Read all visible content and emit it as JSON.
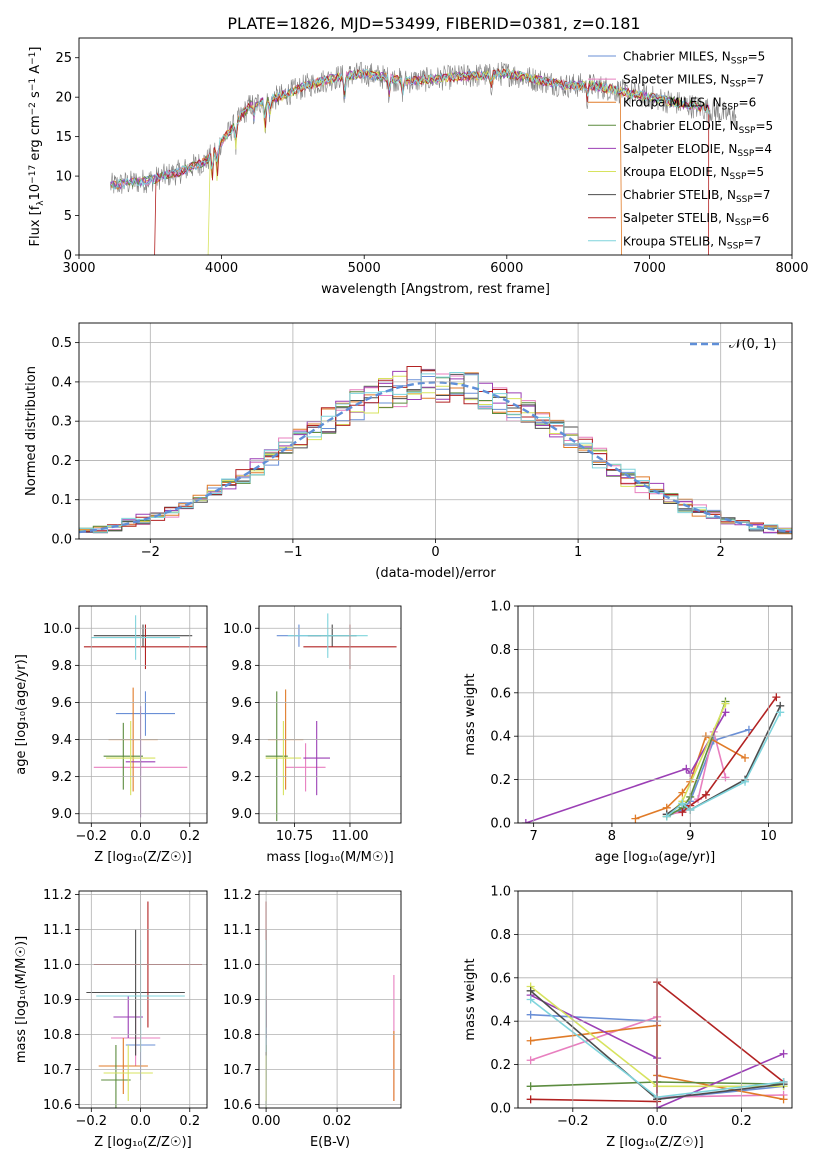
{
  "figure_title": "PLATE=1826, MJD=53499, FIBERID=0381, z=0.181",
  "colors": {
    "c0": "#6a8fd6",
    "c1": "#e87fbf",
    "c2": "#e07b28",
    "c3": "#5c8c3f",
    "c4": "#9b3fb5",
    "c5": "#d7e35f",
    "c6": "#4d4d4d",
    "c7": "#b22222",
    "c8": "#7fd4dc",
    "data": "#808080",
    "normal": "#5f8fd8"
  },
  "chart_data": [
    {
      "id": "spectrum",
      "type": "line",
      "xlabel": "wavelength [Angstrom, rest frame]",
      "ylabel_main": "Flux [f",
      "ylabel_sub": "λ",
      "ylabel_after": "10",
      "ylabel_exp": "−17",
      "ylabel_units": " erg cm",
      "ylabel_units_exp": "−2",
      "ylabel_s": " s",
      "ylabel_s_exp": "−1",
      "ylabel_A": " A",
      "ylabel_A_exp": "−1",
      "ylabel_close": "]",
      "xlim": [
        3000,
        8000
      ],
      "ylim": [
        0,
        27.5
      ],
      "xticks": [
        3000,
        4000,
        5000,
        6000,
        7000,
        8000
      ],
      "yticks": [
        0,
        5,
        10,
        15,
        20,
        25
      ],
      "grid": false,
      "legend_position": "upper right",
      "legend": [
        {
          "name": "Chabrier MILES",
          "nssp": "5"
        },
        {
          "name": "Salpeter MILES",
          "nssp": "7"
        },
        {
          "name": "Kroupa MILES",
          "nssp": "6"
        },
        {
          "name": "Chabrier ELODIE",
          "nssp": "5"
        },
        {
          "name": "Salpeter ELODIE",
          "nssp": "4"
        },
        {
          "name": "Kroupa ELODIE",
          "nssp": "5"
        },
        {
          "name": "Chabrier STELIB",
          "nssp": "7"
        },
        {
          "name": "Salpeter STELIB",
          "nssp": "6"
        },
        {
          "name": "Kroupa STELIB",
          "nssp": "7"
        }
      ],
      "legend_prefix": "N",
      "legend_sub": "SSP",
      "continuum": [
        [
          3220,
          8.8
        ],
        [
          3500,
          9.5
        ],
        [
          3700,
          10.5
        ],
        [
          3900,
          12
        ],
        [
          4050,
          15.5
        ],
        [
          4200,
          19
        ],
        [
          4400,
          20
        ],
        [
          4600,
          21.5
        ],
        [
          4800,
          22.5
        ],
        [
          5000,
          23
        ],
        [
          5300,
          22
        ],
        [
          5600,
          22.5
        ],
        [
          6000,
          23
        ],
        [
          6400,
          21.5
        ],
        [
          6600,
          21.5
        ],
        [
          7000,
          20
        ],
        [
          7400,
          18.5
        ],
        [
          7600,
          17.5
        ]
      ],
      "absorption": [
        [
          3934,
          3.5
        ],
        [
          3969,
          4
        ],
        [
          4101,
          3
        ],
        [
          4226,
          2
        ],
        [
          4305,
          4
        ],
        [
          4340,
          2.5
        ],
        [
          4861,
          3
        ],
        [
          5175,
          2
        ],
        [
          5270,
          1.5
        ],
        [
          5890,
          2
        ],
        [
          6563,
          2
        ]
      ],
      "drops": [
        [
          3530,
          0
        ],
        [
          3905,
          0
        ],
        [
          6790,
          0
        ],
        [
          7410,
          0
        ]
      ]
    },
    {
      "id": "residuals",
      "type": "line",
      "xlabel": "(data-model)/error",
      "ylabel": "Normed distribution",
      "xlim": [
        -2.5,
        2.5
      ],
      "ylim": [
        0,
        0.55
      ],
      "xticks": [
        -2,
        -1,
        0,
        1,
        2
      ],
      "yticks": [
        0.0,
        0.1,
        0.2,
        0.3,
        0.4,
        0.5
      ],
      "grid": true,
      "legend_position": "upper right",
      "normal_label": "𝒩(0, 1)",
      "bins": 50
    },
    {
      "id": "age-vs-Z",
      "type": "scatter",
      "xlabel": "Z [log₁₀(Z/Z☉)]",
      "ylabel": "age  [log₁₀(age/yr)]",
      "xlim": [
        -0.25,
        0.27
      ],
      "ylim": [
        8.95,
        10.12
      ],
      "xticks": [
        -0.2,
        0.0,
        0.2
      ],
      "yticks": [
        9.0,
        9.2,
        9.4,
        9.6,
        9.8,
        10.0
      ],
      "grid": true,
      "points": [
        {
          "x": 0.02,
          "xerr": 0.12,
          "y": 9.54,
          "yerr": 0.12
        },
        {
          "x": 0.0,
          "xerr": 0.19,
          "y": 9.25,
          "yerr": 0.04
        },
        {
          "x": -0.03,
          "xerr": 0.1,
          "y": 9.4,
          "yerr": 0.28
        },
        {
          "x": -0.07,
          "xerr": 0.08,
          "y": 9.31,
          "yerr": 0.18
        },
        {
          "x": 0.0,
          "xerr": 0.06,
          "y": 9.28,
          "yerr": 0.3
        },
        {
          "x": -0.04,
          "xerr": 0.1,
          "y": 9.3,
          "yerr": 0.2
        },
        {
          "x": 0.01,
          "xerr": 0.2,
          "y": 9.96,
          "yerr": 0.06
        },
        {
          "x": 0.02,
          "xerr": 0.25,
          "y": 9.9,
          "yerr": 0.12
        },
        {
          "x": -0.02,
          "xerr": 0.18,
          "y": 9.95,
          "yerr": 0.12
        }
      ]
    },
    {
      "id": "age-vs-mass",
      "type": "scatter",
      "xlabel": "mass [log₁₀(M/M☉)]",
      "ylabel": "",
      "xlim": [
        10.59,
        11.23
      ],
      "ylim": [
        8.95,
        10.12
      ],
      "xticks": [
        10.75,
        11.0
      ],
      "xticklabels": [
        "10.75",
        "11.00"
      ],
      "yticks": [
        9.0,
        9.2,
        9.4,
        9.6,
        9.8,
        10.0
      ],
      "grid": true,
      "points": [
        {
          "x": 10.77,
          "xerr": 0.1,
          "y": 9.96,
          "yerr": 0.06
        },
        {
          "x": 10.8,
          "xerr": 0.09,
          "y": 9.25,
          "yerr": 0.13
        },
        {
          "x": 10.71,
          "xerr": 0.08,
          "y": 9.4,
          "yerr": 0.27
        },
        {
          "x": 10.67,
          "xerr": 0.05,
          "y": 9.31,
          "yerr": 0.35
        },
        {
          "x": 10.85,
          "xerr": 0.06,
          "y": 9.3,
          "yerr": 0.2
        },
        {
          "x": 10.7,
          "xerr": 0.08,
          "y": 9.3,
          "yerr": 0.2
        },
        {
          "x": 10.92,
          "xerr": 0.11,
          "y": 9.96,
          "yerr": 0.06
        },
        {
          "x": 11.0,
          "xerr": 0.21,
          "y": 9.9,
          "yerr": 0.12
        },
        {
          "x": 10.9,
          "xerr": 0.18,
          "y": 9.96,
          "yerr": 0.12
        }
      ]
    },
    {
      "id": "weight-vs-age",
      "type": "line",
      "xlabel": "age  [log₁₀(age/yr)]",
      "ylabel": "mass weight",
      "xlim": [
        6.8,
        10.3
      ],
      "ylim": [
        0,
        1.0
      ],
      "xticks": [
        7,
        8,
        9,
        10
      ],
      "yticks": [
        0.0,
        0.2,
        0.4,
        0.6,
        0.8,
        1.0
      ],
      "grid": true,
      "series": [
        {
          "points": [
            [
              8.7,
              0.03
            ],
            [
              8.9,
              0.06
            ],
            [
              9.0,
              0.1
            ],
            [
              9.3,
              0.38
            ],
            [
              9.75,
              0.43
            ]
          ]
        },
        {
          "points": [
            [
              8.7,
              0.04
            ],
            [
              8.9,
              0.05
            ],
            [
              9.1,
              0.11
            ],
            [
              9.3,
              0.42
            ],
            [
              9.45,
              0.21
            ]
          ]
        },
        {
          "points": [
            [
              8.3,
              0.02
            ],
            [
              8.7,
              0.07
            ],
            [
              8.9,
              0.14
            ],
            [
              9.0,
              0.19
            ],
            [
              9.2,
              0.4
            ],
            [
              9.7,
              0.3
            ]
          ]
        },
        {
          "points": [
            [
              8.7,
              0.03
            ],
            [
              8.9,
              0.07
            ],
            [
              9.0,
              0.12
            ],
            [
              9.45,
              0.56
            ]
          ]
        },
        {
          "points": [
            [
              6.9,
              0.0
            ],
            [
              8.95,
              0.25
            ],
            [
              9.0,
              0.23
            ],
            [
              9.45,
              0.51
            ]
          ]
        },
        {
          "points": [
            [
              8.7,
              0.03
            ],
            [
              8.9,
              0.1
            ],
            [
              9.45,
              0.55
            ]
          ]
        },
        {
          "points": [
            [
              8.7,
              0.04
            ],
            [
              8.9,
              0.09
            ],
            [
              9.0,
              0.06
            ],
            [
              9.7,
              0.2
            ],
            [
              10.15,
              0.54
            ]
          ]
        },
        {
          "points": [
            [
              8.9,
              0.05
            ],
            [
              9.0,
              0.08
            ],
            [
              9.2,
              0.13
            ],
            [
              10.1,
              0.58
            ]
          ]
        },
        {
          "points": [
            [
              8.7,
              0.03
            ],
            [
              8.9,
              0.09
            ],
            [
              9.0,
              0.06
            ],
            [
              9.7,
              0.19
            ],
            [
              10.15,
              0.51
            ]
          ]
        }
      ]
    },
    {
      "id": "mass-vs-Z",
      "type": "scatter",
      "xlabel": "Z [log₁₀(Z/Z☉)]",
      "ylabel": "mass [log₁₀(M/M☉)]",
      "xlim": [
        -0.25,
        0.27
      ],
      "ylim": [
        10.59,
        11.21
      ],
      "xticks": [
        -0.2,
        0.0,
        0.2
      ],
      "yticks": [
        10.6,
        10.7,
        10.8,
        10.9,
        11.0,
        11.1,
        11.2
      ],
      "grid": true,
      "points": [
        {
          "x": 0.0,
          "xerr": 0.06,
          "y": 10.77,
          "yerr": 0.1
        },
        {
          "x": -0.02,
          "xerr": 0.1,
          "y": 10.79,
          "yerr": 0.08
        },
        {
          "x": -0.07,
          "xerr": 0.1,
          "y": 10.71,
          "yerr": 0.08
        },
        {
          "x": -0.1,
          "xerr": 0.06,
          "y": 10.67,
          "yerr": 0.1
        },
        {
          "x": -0.05,
          "xerr": 0.06,
          "y": 10.85,
          "yerr": 0.06
        },
        {
          "x": -0.05,
          "xerr": 0.1,
          "y": 10.69,
          "yerr": 0.08
        },
        {
          "x": -0.02,
          "xerr": 0.2,
          "y": 10.92,
          "yerr": 0.18
        },
        {
          "x": 0.03,
          "xerr": 0.22,
          "y": 11.0,
          "yerr": 0.18
        },
        {
          "x": 0.0,
          "xerr": 0.18,
          "y": 10.91,
          "yerr": 0.16
        }
      ]
    },
    {
      "id": "mass-vs-ebv",
      "type": "scatter",
      "xlabel": "E(B-V)",
      "ylabel": "",
      "xlim": [
        -0.002,
        0.038
      ],
      "ylim": [
        10.59,
        11.21
      ],
      "xticks": [
        0.0,
        0.02
      ],
      "xticklabels": [
        "0.00",
        "0.02"
      ],
      "yticks": [
        10.6,
        10.7,
        10.8,
        10.9,
        11.0,
        11.1,
        11.2
      ],
      "grid": true,
      "points": [
        {
          "x": 0.0,
          "xerr": 0,
          "y": 10.77,
          "yerr": 0.1
        },
        {
          "x": 0.036,
          "xerr": 0,
          "y": 10.79,
          "yerr": 0.18
        },
        {
          "x": 0.036,
          "xerr": 0,
          "y": 10.71,
          "yerr": 0.1
        },
        {
          "x": 0.0,
          "xerr": 0,
          "y": 10.67,
          "yerr": 0.1
        },
        {
          "x": 0.0,
          "xerr": 0,
          "y": 10.85,
          "yerr": 0.06
        },
        {
          "x": 0.0,
          "xerr": 0,
          "y": 10.69,
          "yerr": 0.08
        },
        {
          "x": 0.0,
          "xerr": 0,
          "y": 10.92,
          "yerr": 0.18
        },
        {
          "x": 0.0,
          "xerr": 0,
          "y": 11.0,
          "yerr": 0.18
        },
        {
          "x": 0.0,
          "xerr": 0,
          "y": 10.91,
          "yerr": 0.16
        }
      ]
    },
    {
      "id": "weight-vs-Z",
      "type": "line",
      "xlabel": "Z [log₁₀(Z/Z☉)]",
      "ylabel": "mass weight",
      "xlim": [
        -0.33,
        0.32
      ],
      "ylim": [
        0,
        1.0
      ],
      "xticks": [
        -0.2,
        0.0,
        0.2
      ],
      "yticks": [
        0.0,
        0.2,
        0.4,
        0.6,
        0.8,
        1.0
      ],
      "grid": true,
      "series": [
        {
          "points": [
            [
              -0.3,
              0.43
            ],
            [
              0.0,
              0.4
            ],
            [
              0.0,
              0.04
            ],
            [
              0.3,
              0.1
            ]
          ]
        },
        {
          "points": [
            [
              -0.3,
              0.22
            ],
            [
              0.0,
              0.42
            ],
            [
              0.0,
              0.05
            ],
            [
              0.3,
              0.06
            ]
          ]
        },
        {
          "points": [
            [
              -0.3,
              0.31
            ],
            [
              0.0,
              0.38
            ],
            [
              0.0,
              0.15
            ],
            [
              0.3,
              0.04
            ]
          ]
        },
        {
          "points": [
            [
              -0.3,
              0.1
            ],
            [
              0.0,
              0.12
            ],
            [
              0.3,
              0.11
            ]
          ]
        },
        {
          "points": [
            [
              -0.3,
              0.52
            ],
            [
              0.0,
              0.23
            ],
            [
              0.0,
              0.0
            ],
            [
              0.3,
              0.25
            ]
          ]
        },
        {
          "points": [
            [
              -0.3,
              0.56
            ],
            [
              0.0,
              0.1
            ],
            [
              0.3,
              0.1
            ]
          ]
        },
        {
          "points": [
            [
              -0.3,
              0.54
            ],
            [
              0.0,
              0.04
            ],
            [
              0.3,
              0.11
            ]
          ]
        },
        {
          "points": [
            [
              -0.3,
              0.04
            ],
            [
              0.0,
              0.03
            ],
            [
              0.0,
              0.58
            ],
            [
              0.3,
              0.12
            ]
          ]
        },
        {
          "points": [
            [
              -0.3,
              0.5
            ],
            [
              0.0,
              0.05
            ],
            [
              0.3,
              0.12
            ]
          ]
        }
      ]
    }
  ]
}
